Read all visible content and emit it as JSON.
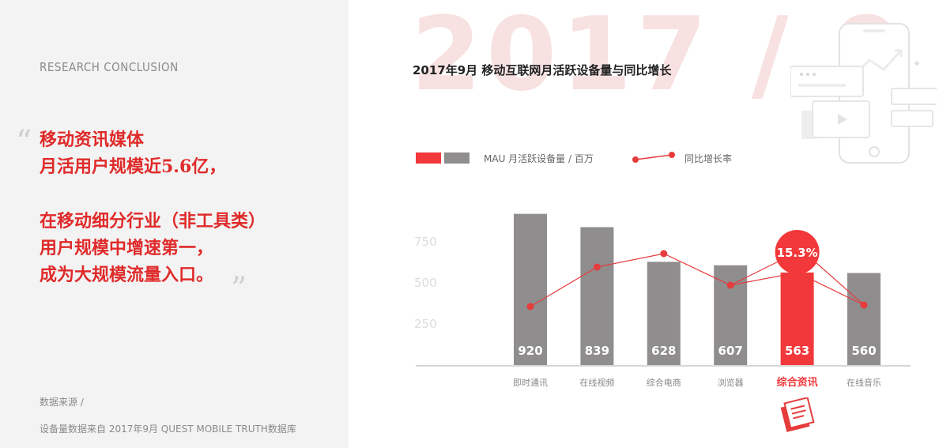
{
  "left_panel": {
    "heading": "RESEARCH  CONCLUSION",
    "quote_open": "“",
    "quote_close": "”",
    "conclusion_lines_1": [
      "移动资讯媒体",
      "月活用户规模近5.6亿，"
    ],
    "conclusion_lines_2": [
      "在移动细分行业（非工具类）",
      "用户规模中增速第一，",
      "成为大规模流量入口。"
    ],
    "source_label": "数据来源 /",
    "source_text": "设备量数据来自 2017年9月 QUEST MOBILE TRUTH数据库"
  },
  "watermark": "2017 / 9",
  "chart_data": {
    "type": "bar",
    "title": "2017年9月 移动互联网月活跃设备量与同比增长",
    "categories": [
      "即时通讯",
      "在线视频",
      "综合电商",
      "浏览器",
      "综合资讯",
      "在线音乐"
    ],
    "highlight_category": "综合资讯",
    "series": [
      {
        "name": "MAU 月活跃设备量 / 百万",
        "values": [
          920,
          839,
          628,
          607,
          563,
          560
        ]
      },
      {
        "name": "同比增长率",
        "type": "line",
        "highlight_label": "15.3%"
      }
    ],
    "yticks": [
      250,
      500,
      750
    ],
    "ylim": [
      0,
      1000
    ],
    "colors": {
      "bar": "#8f8d8e",
      "highlight": "#f2383a",
      "line": "#e63c3c",
      "axis": "#c9c9c9"
    }
  },
  "legend": {
    "mau": "MAU  月活跃设备量  /  百万",
    "yoy": "同比增长率"
  }
}
